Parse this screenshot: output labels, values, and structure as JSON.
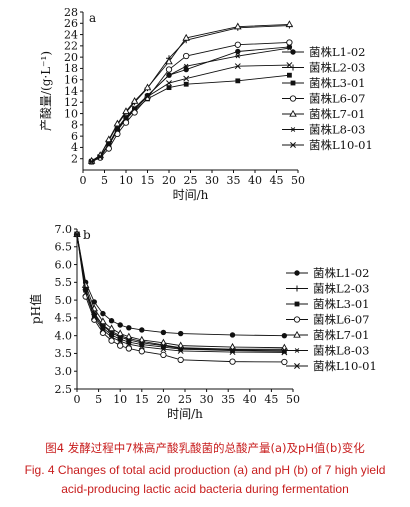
{
  "chart_data": [
    {
      "panel": "a",
      "type": "line",
      "xlabel": "时间/h",
      "ylabel": "产酸量/(g·L⁻¹)",
      "xlim": [
        0,
        50
      ],
      "ylim": [
        0,
        28
      ],
      "xticks": [
        0,
        5,
        10,
        15,
        20,
        25,
        30,
        35,
        40,
        45,
        50
      ],
      "yticks": [
        2,
        4,
        6,
        8,
        10,
        12,
        14,
        16,
        18,
        20,
        22,
        24,
        26,
        28
      ],
      "legend_position": "right",
      "x": [
        2,
        4,
        6,
        8,
        10,
        12,
        15,
        20,
        24,
        36,
        48
      ],
      "series": [
        {
          "name": "菌株L1-02",
          "marker": "filled-circle",
          "values": [
            1.5,
            2.4,
            4.6,
            7.2,
            9.2,
            10.8,
            13.2,
            16.8,
            17.8,
            21.0,
            21.8
          ]
        },
        {
          "name": "菌株L2-03",
          "marker": "plus",
          "values": [
            1.6,
            2.6,
            5.2,
            8.0,
            10.2,
            12.0,
            14.5,
            19.8,
            23.0,
            25.2,
            25.6
          ]
        },
        {
          "name": "菌株L3-01",
          "marker": "filled-square",
          "values": [
            1.4,
            2.3,
            4.4,
            7.0,
            9.0,
            10.6,
            12.6,
            14.6,
            15.2,
            15.8,
            16.8
          ]
        },
        {
          "name": "菌株L6-07",
          "marker": "open-circle",
          "values": [
            1.5,
            2.2,
            3.8,
            6.4,
            8.4,
            10.2,
            12.8,
            17.8,
            20.2,
            22.2,
            22.6
          ]
        },
        {
          "name": "菌株L7-01",
          "marker": "open-triangle",
          "values": [
            1.6,
            2.6,
            5.4,
            8.2,
            10.4,
            12.2,
            14.6,
            19.2,
            23.4,
            25.4,
            25.8
          ]
        },
        {
          "name": "菌株L8-03",
          "marker": "asterisk",
          "values": [
            1.5,
            2.4,
            4.6,
            7.4,
            9.4,
            11.0,
            13.2,
            16.8,
            18.4,
            20.2,
            21.6
          ]
        },
        {
          "name": "菌株L10-01",
          "marker": "cross",
          "values": [
            1.5,
            2.3,
            4.5,
            7.2,
            9.2,
            10.8,
            13.0,
            15.4,
            16.2,
            18.4,
            18.6
          ]
        }
      ]
    },
    {
      "panel": "b",
      "type": "line",
      "xlabel": "时间/h",
      "ylabel": "pH值",
      "xlim": [
        0,
        50
      ],
      "ylim": [
        2.5,
        7.0
      ],
      "xticks": [
        0,
        5,
        10,
        15,
        20,
        25,
        30,
        35,
        40,
        45,
        50
      ],
      "yticks": [
        2.5,
        3.0,
        3.5,
        4.0,
        4.5,
        5.0,
        5.5,
        6.0,
        6.5,
        7.0
      ],
      "legend_position": "right",
      "x": [
        0,
        2,
        4,
        6,
        8,
        10,
        12,
        15,
        20,
        24,
        36,
        48
      ],
      "series": [
        {
          "name": "菌株L1-02",
          "marker": "filled-circle",
          "values": [
            6.85,
            5.5,
            4.95,
            4.62,
            4.42,
            4.3,
            4.22,
            4.16,
            4.09,
            4.06,
            4.02,
            4.0
          ]
        },
        {
          "name": "菌株L2-03",
          "marker": "plus",
          "values": [
            6.85,
            5.3,
            4.6,
            4.3,
            4.12,
            4.0,
            3.92,
            3.84,
            3.74,
            3.66,
            3.62,
            3.62
          ]
        },
        {
          "name": "菌株L3-01",
          "marker": "filled-square",
          "values": [
            6.85,
            5.28,
            4.58,
            4.22,
            4.02,
            3.9,
            3.82,
            3.75,
            3.68,
            3.62,
            3.58,
            3.56
          ]
        },
        {
          "name": "菌株L6-07",
          "marker": "open-circle",
          "values": [
            6.85,
            5.1,
            4.45,
            4.08,
            3.86,
            3.72,
            3.64,
            3.56,
            3.46,
            3.32,
            3.27,
            3.26
          ]
        },
        {
          "name": "菌株L7-01",
          "marker": "open-triangle",
          "values": [
            6.85,
            5.42,
            4.76,
            4.4,
            4.2,
            4.06,
            3.97,
            3.88,
            3.8,
            3.72,
            3.68,
            3.66
          ]
        },
        {
          "name": "菌株L8-03",
          "marker": "asterisk",
          "values": [
            6.85,
            5.32,
            4.64,
            4.28,
            4.08,
            3.96,
            3.88,
            3.8,
            3.72,
            3.64,
            3.6,
            3.59
          ]
        },
        {
          "name": "菌株L10-01",
          "marker": "cross",
          "values": [
            6.85,
            5.2,
            4.52,
            4.16,
            3.96,
            3.84,
            3.76,
            3.69,
            3.62,
            3.57,
            3.54,
            3.53
          ]
        }
      ]
    }
  ],
  "caption": {
    "zh": "图4 发酵过程中7株高产酸乳酸菌的总酸产量(a)及pH值(b)变化",
    "en_line1": "Fig. 4 Changes of total acid production (a) and pH (b) of 7 high yield",
    "en_line2": "acid-producing lactic acid bacteria during fermentation"
  },
  "colors": {
    "axis": "#111111",
    "caption": "#c81e1e",
    "background": "#ffffff"
  }
}
